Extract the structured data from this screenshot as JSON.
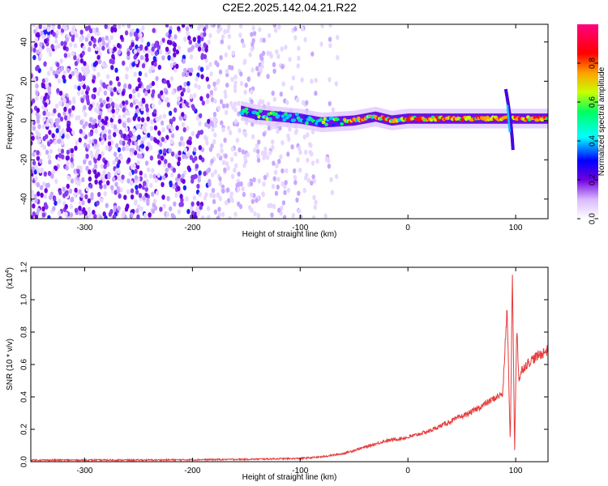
{
  "figure_title": "C2E2.2025.142.04.21.R22",
  "chart_data": [
    {
      "type": "heatmap",
      "title": "C2E2.2025.142.04.21.R22",
      "xlabel": "Height of straight line (km)",
      "ylabel": "Frequency (Hz)",
      "xlim": [
        -350,
        130
      ],
      "ylim": [
        -50,
        49
      ],
      "x_ticks": [
        -300,
        -200,
        -100,
        0,
        100
      ],
      "x_tick_labels": [
        "-300",
        "-200",
        "-100",
        "0",
        "100"
      ],
      "y_ticks": [
        -40,
        -20,
        0,
        20,
        40
      ],
      "y_tick_labels": [
        "-40",
        "-20",
        "0",
        "20",
        "40"
      ],
      "colorbar": {
        "label": "Normalized spectral amplitude",
        "range": [
          0,
          1
        ],
        "ticks": [
          0.0,
          0.2,
          0.4,
          0.6,
          0.8
        ],
        "tick_labels": [
          "0.0",
          "0.2",
          "0.4",
          "0.6",
          "0.8"
        ],
        "colormap": "rainbow (white, purple, blue, cyan, green, yellow, red, magenta)"
      },
      "features": {
        "noise_region_km": [
          -350,
          -75
        ],
        "signal_trace": {
          "description": "narrow band near 0 Hz, broad around -150 to -50 km, strong from -20 to 120 km",
          "points": [
            [
              -155,
              5
            ],
            [
              -140,
              3
            ],
            [
              -120,
              2
            ],
            [
              -100,
              1
            ],
            [
              -80,
              -1
            ],
            [
              -50,
              0
            ],
            [
              -30,
              2
            ],
            [
              -15,
              0
            ],
            [
              0,
              1
            ],
            [
              50,
              1
            ],
            [
              85,
              1
            ],
            [
              110,
              1
            ],
            [
              130,
              1
            ]
          ]
        },
        "spike": {
          "x_km": 93,
          "freq_range_hz": [
            -15,
            16
          ]
        }
      }
    },
    {
      "type": "line",
      "xlabel": "Height of straight line (km)",
      "ylabel": "SNR (10 * v/v)",
      "y_multiplier_label": "(x10",
      "y_multiplier_exp": "4",
      "y_multiplier_close": ")",
      "xlim": [
        -350,
        130
      ],
      "ylim": [
        0,
        1.2
      ],
      "x_ticks": [
        -300,
        -200,
        -100,
        0,
        100
      ],
      "x_tick_labels": [
        "-300",
        "-200",
        "-100",
        "0",
        "100"
      ],
      "y_ticks": [
        0.0,
        0.2,
        0.4,
        0.6,
        0.8,
        1.0,
        1.2
      ],
      "y_tick_labels": [
        "0.0",
        "0.2",
        "0.4",
        "0.6",
        "0.8",
        "1.0",
        "1.2"
      ],
      "series": [
        {
          "color": "#e53c3c",
          "x": [
            -350,
            -300,
            -250,
            -200,
            -150,
            -100,
            -80,
            -60,
            -50,
            -40,
            -30,
            -20,
            -10,
            0,
            10,
            20,
            30,
            40,
            50,
            60,
            70,
            80,
            88,
            92,
            95,
            97,
            99,
            101,
            103,
            106,
            110,
            115,
            120,
            125,
            130
          ],
          "y": [
            0.01,
            0.01,
            0.01,
            0.012,
            0.015,
            0.02,
            0.03,
            0.05,
            0.07,
            0.09,
            0.11,
            0.13,
            0.14,
            0.15,
            0.17,
            0.19,
            0.22,
            0.25,
            0.28,
            0.31,
            0.35,
            0.39,
            0.42,
            0.95,
            0.1,
            1.2,
            0.05,
            0.85,
            0.5,
            0.57,
            0.6,
            0.63,
            0.65,
            0.67,
            0.69
          ]
        }
      ]
    }
  ]
}
